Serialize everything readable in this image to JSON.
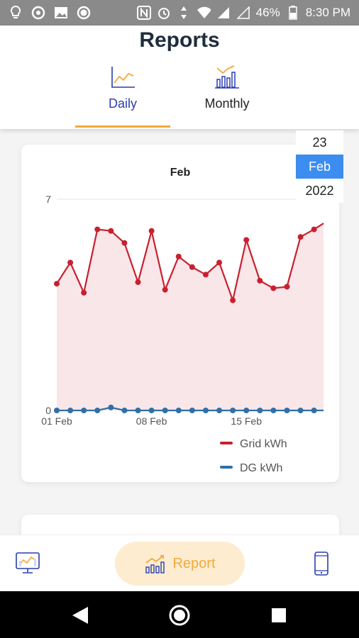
{
  "status_bar": {
    "battery": "46%",
    "time": "8:30 PM"
  },
  "header": {
    "title": "Reports",
    "tabs": [
      {
        "label": "Daily",
        "icon": "line-chart-icon",
        "active": true
      },
      {
        "label": "Monthly",
        "icon": "bar-chart-icon",
        "active": false
      }
    ]
  },
  "date_picker": {
    "day": "23",
    "month": "Feb",
    "year": "2022"
  },
  "chart_data": {
    "type": "area",
    "title": "Feb",
    "y_tick_labels": [
      "0",
      "7"
    ],
    "ylim": [
      0,
      7
    ],
    "x_tick_labels": [
      "01 Feb",
      "08 Feb",
      "15 Feb"
    ],
    "x_tick_days": [
      1,
      8,
      15
    ],
    "x": [
      1,
      2,
      3,
      4,
      5,
      6,
      7,
      8,
      9,
      10,
      11,
      12,
      13,
      14,
      15,
      16,
      17,
      18,
      19,
      20,
      21
    ],
    "series": [
      {
        "name": "Grid kWh",
        "color": "#c8202f",
        "fill": "#f9e6e9",
        "values": [
          4.2,
          4.9,
          3.9,
          6.0,
          5.95,
          5.55,
          4.25,
          5.95,
          4.0,
          5.1,
          4.75,
          4.5,
          4.9,
          3.65,
          5.65,
          4.3,
          4.05,
          4.1,
          5.75,
          6.0,
          6.2
        ]
      },
      {
        "name": "DG kWh",
        "color": "#2f70a8",
        "values": [
          0,
          0,
          0,
          0,
          0.1,
          0,
          0,
          0,
          0,
          0,
          0,
          0,
          0,
          0,
          0,
          0,
          0,
          0,
          0,
          0,
          0
        ]
      }
    ],
    "legend_position": "bottom-right"
  },
  "bottom_nav": {
    "items": [
      {
        "icon": "dashboard-icon",
        "label": ""
      },
      {
        "icon": "report-icon",
        "label": "Report",
        "active": true
      },
      {
        "icon": "device-icon",
        "label": ""
      }
    ]
  }
}
